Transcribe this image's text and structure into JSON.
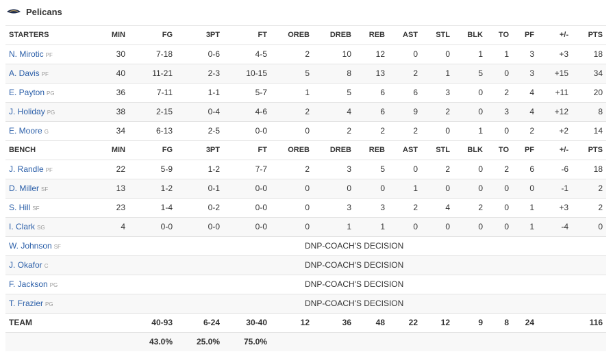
{
  "header": {
    "team": "Pelicans"
  },
  "table": {
    "columns": [
      "MIN",
      "FG",
      "3PT",
      "FT",
      "OREB",
      "DREB",
      "REB",
      "AST",
      "STL",
      "BLK",
      "TO",
      "PF",
      "+/-",
      "PTS"
    ],
    "starters": {
      "label": "STARTERS",
      "rows": [
        {
          "name": "N. Mirotic",
          "pos": "PF",
          "stats": [
            30,
            "7-18",
            "0-6",
            "4-5",
            2,
            10,
            12,
            0,
            0,
            1,
            1,
            3,
            "+3",
            18
          ]
        },
        {
          "name": "A. Davis",
          "pos": "PF",
          "stats": [
            40,
            "11-21",
            "2-3",
            "10-15",
            5,
            8,
            13,
            2,
            1,
            5,
            0,
            3,
            "+15",
            34
          ]
        },
        {
          "name": "E. Payton",
          "pos": "PG",
          "stats": [
            36,
            "7-11",
            "1-1",
            "5-7",
            1,
            5,
            6,
            6,
            3,
            0,
            2,
            4,
            "+11",
            20
          ]
        },
        {
          "name": "J. Holiday",
          "pos": "PG",
          "stats": [
            38,
            "2-15",
            "0-4",
            "4-6",
            2,
            4,
            6,
            9,
            2,
            0,
            3,
            4,
            "+12",
            8
          ]
        },
        {
          "name": "E. Moore",
          "pos": "G",
          "stats": [
            34,
            "6-13",
            "2-5",
            "0-0",
            0,
            2,
            2,
            2,
            0,
            1,
            0,
            2,
            "+2",
            14
          ]
        }
      ]
    },
    "bench": {
      "label": "BENCH",
      "rows": [
        {
          "name": "J. Randle",
          "pos": "PF",
          "stats": [
            22,
            "5-9",
            "1-2",
            "7-7",
            2,
            3,
            5,
            0,
            2,
            0,
            2,
            6,
            -6,
            18
          ]
        },
        {
          "name": "D. Miller",
          "pos": "SF",
          "stats": [
            13,
            "1-2",
            "0-1",
            "0-0",
            0,
            0,
            0,
            1,
            0,
            0,
            0,
            0,
            -1,
            2
          ]
        },
        {
          "name": "S. Hill",
          "pos": "SF",
          "stats": [
            23,
            "1-4",
            "0-2",
            "0-0",
            0,
            3,
            3,
            2,
            4,
            2,
            0,
            1,
            "+3",
            2
          ]
        },
        {
          "name": "I. Clark",
          "pos": "SG",
          "stats": [
            4,
            "0-0",
            "0-0",
            "0-0",
            0,
            1,
            1,
            0,
            0,
            0,
            0,
            1,
            -4,
            0
          ]
        },
        {
          "name": "W. Johnson",
          "pos": "SF",
          "note": "DNP-COACH'S DECISION"
        },
        {
          "name": "J. Okafor",
          "pos": "C",
          "note": "DNP-COACH'S DECISION"
        },
        {
          "name": "F. Jackson",
          "pos": "PG",
          "note": "DNP-COACH'S DECISION"
        },
        {
          "name": "T. Frazier",
          "pos": "PG",
          "note": "DNP-COACH'S DECISION"
        }
      ]
    },
    "team": {
      "label": "TEAM",
      "stats": {
        "FG": "40-93",
        "3PT": "6-24",
        "FT": "30-40",
        "OREB": 12,
        "DREB": 36,
        "REB": 48,
        "AST": 22,
        "STL": 12,
        "BLK": 9,
        "TO": 8,
        "PF": 24,
        "PTS": 116
      }
    },
    "percentages": {
      "FG": "43.0%",
      "3PT": "25.0%",
      "FT": "75.0%"
    }
  }
}
